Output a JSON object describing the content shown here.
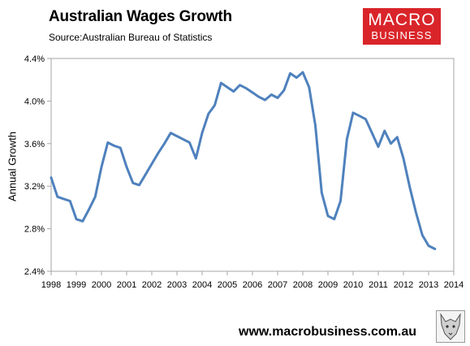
{
  "header": {
    "title": "Australian Wages Growth",
    "subtitle": "Source:Australian Bureau of Statistics"
  },
  "logo": {
    "line1": "MACRO",
    "line2": "BUSINESS"
  },
  "footer": {
    "url": "www.macrobusiness.com.au"
  },
  "colors": {
    "line": "#4f81bd",
    "logo_bg": "#d9252a"
  },
  "icons": {
    "mascot": "wolf-icon"
  },
  "chart_data": {
    "type": "line",
    "title": "Australian Wages Growth",
    "subtitle": "Source:Australian Bureau of Statistics",
    "xlabel": "",
    "ylabel": "Annual Growth",
    "xlim": [
      1998,
      2014
    ],
    "ylim": [
      2.4,
      4.4
    ],
    "x_ticks": [
      1998,
      1999,
      2000,
      2001,
      2002,
      2003,
      2004,
      2005,
      2006,
      2007,
      2008,
      2009,
      2010,
      2011,
      2012,
      2013,
      2014
    ],
    "y_ticks": [
      "2.4%",
      "2.8%",
      "3.2%",
      "3.6%",
      "4.0%",
      "4.4%"
    ],
    "y_tick_values": [
      2.4,
      2.8,
      3.2,
      3.6,
      4.0,
      4.4
    ],
    "grid": false,
    "legend": "none",
    "series": [
      {
        "x": [
          1998.0,
          1998.25,
          1998.5,
          1998.75,
          1999.0,
          1999.25,
          1999.5,
          1999.75,
          2000.0,
          2000.25,
          2000.5,
          2000.75,
          2001.0,
          2001.25,
          2001.5,
          2001.75,
          2002.0,
          2002.25,
          2002.5,
          2002.75,
          2003.0,
          2003.25,
          2003.5,
          2003.75,
          2004.0,
          2004.25,
          2004.5,
          2004.75,
          2005.0,
          2005.25,
          2005.5,
          2005.75,
          2006.0,
          2006.25,
          2006.5,
          2006.75,
          2007.0,
          2007.25,
          2007.5,
          2007.75,
          2008.0,
          2008.25,
          2008.5,
          2008.75,
          2009.0,
          2009.25,
          2009.5,
          2009.75,
          2010.0,
          2010.25,
          2010.5,
          2010.75,
          2011.0,
          2011.25,
          2011.5,
          2011.75,
          2012.0,
          2012.25,
          2012.5,
          2012.75,
          2013.0,
          2013.25
        ],
        "y": [
          3.28,
          3.1,
          3.08,
          3.06,
          2.89,
          2.87,
          2.98,
          3.1,
          3.38,
          3.61,
          3.58,
          3.56,
          3.38,
          3.23,
          3.21,
          3.31,
          3.41,
          3.51,
          3.6,
          3.7,
          3.67,
          3.64,
          3.61,
          3.46,
          3.7,
          3.88,
          3.96,
          4.17,
          4.13,
          4.09,
          4.15,
          4.12,
          4.08,
          4.04,
          4.01,
          4.06,
          4.03,
          4.1,
          4.26,
          4.22,
          4.27,
          4.13,
          3.77,
          3.14,
          2.92,
          2.89,
          3.06,
          3.64,
          3.89,
          3.86,
          3.83,
          3.7,
          3.57,
          3.72,
          3.6,
          3.66,
          3.46,
          3.19,
          2.95,
          2.74,
          2.64,
          2.61
        ]
      }
    ]
  }
}
